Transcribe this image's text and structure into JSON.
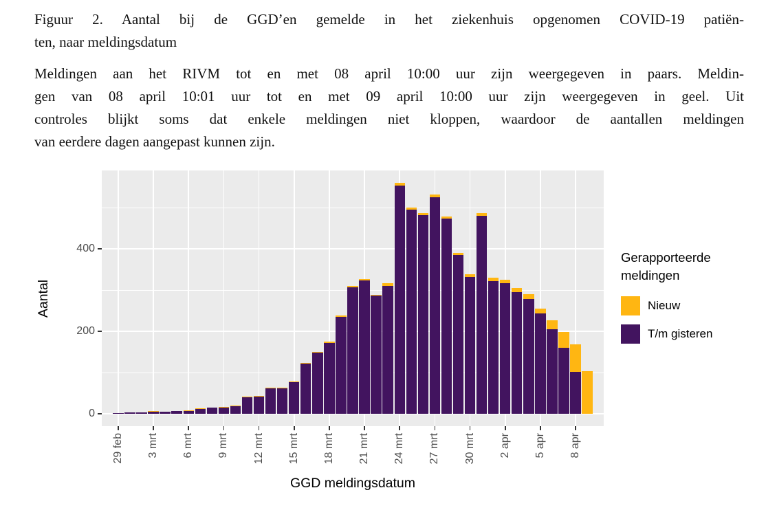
{
  "figure": {
    "title_lines": [
      "Figuur 2. Aantal bij de GGD’en gemelde in het ziekenhuis opgenomen COVID-19 patiën-",
      "ten, naar meldingsdatum"
    ],
    "description_lines": [
      "Meldingen aan het RIVM tot en met 08 april 10:00 uur zijn weergegeven in paars. Meldin-",
      "gen van 08 april 10:01 uur tot en met 09 april 10:00 uur zijn weergegeven in geel. Uit",
      "controles blijkt soms dat enkele meldingen niet kloppen, waardoor de aantallen meldingen",
      "van eerdere dagen aangepast kunnen zijn."
    ]
  },
  "chart_data": {
    "type": "bar",
    "stacked": true,
    "title": "",
    "xlabel": "GGD meldingsdatum",
    "ylabel": "Aantal",
    "yticks": [
      0,
      200,
      400
    ],
    "axis_range": [
      -30,
      590
    ],
    "ylim": [
      0,
      560
    ],
    "grid": "on",
    "gridlines": {
      "major": [
        0,
        200,
        400
      ],
      "minor": [
        100,
        300,
        500
      ]
    },
    "x_tick_step": 3,
    "x_tick_labels": [
      "29 feb",
      "3 mrt",
      "6 mrt",
      "9 mrt",
      "12 mrt",
      "15 mrt",
      "18 mrt",
      "21 mrt",
      "24 mrt",
      "27 mrt",
      "30 mrt",
      "2 apr",
      "5 apr",
      "8 apr"
    ],
    "categories": [
      "29 feb",
      "1 mrt",
      "2 mrt",
      "3 mrt",
      "4 mrt",
      "5 mrt",
      "6 mrt",
      "7 mrt",
      "8 mrt",
      "9 mrt",
      "10 mrt",
      "11 mrt",
      "12 mrt",
      "13 mrt",
      "14 mrt",
      "15 mrt",
      "16 mrt",
      "17 mrt",
      "18 mrt",
      "19 mrt",
      "20 mrt",
      "21 mrt",
      "22 mrt",
      "23 mrt",
      "24 mrt",
      "25 mrt",
      "26 mrt",
      "27 mrt",
      "28 mrt",
      "29 mrt",
      "30 mrt",
      "31 mrt",
      "1 apr",
      "2 apr",
      "3 apr",
      "4 apr",
      "5 apr",
      "6 apr",
      "7 apr",
      "8 apr",
      "9 apr"
    ],
    "series": [
      {
        "name": "T/m gisteren",
        "color": "#42145F",
        "values": [
          2,
          4,
          3,
          6,
          5,
          6,
          7,
          13,
          15,
          16,
          19,
          40,
          42,
          61,
          63,
          76,
          121,
          148,
          172,
          235,
          307,
          323,
          286,
          310,
          554,
          495,
          482,
          525,
          474,
          385,
          332,
          480,
          322,
          316,
          295,
          278,
          243,
          205,
          160,
          102,
          0
        ]
      },
      {
        "name": "Nieuw",
        "color": "#FFB612",
        "values": [
          0,
          0,
          0,
          1,
          0,
          0,
          1,
          1,
          0,
          1,
          1,
          2,
          1,
          2,
          1,
          2,
          2,
          2,
          3,
          3,
          3,
          4,
          3,
          7,
          6,
          5,
          4,
          7,
          5,
          5,
          6,
          7,
          8,
          9,
          10,
          12,
          12,
          22,
          38,
          66,
          103
        ]
      }
    ],
    "legend": {
      "title": "Gerapporteerde meldingen",
      "position": "right",
      "entries": [
        {
          "label": "Nieuw",
          "color": "#FFB612"
        },
        {
          "label": "T/m gisteren",
          "color": "#42145F"
        }
      ]
    }
  }
}
